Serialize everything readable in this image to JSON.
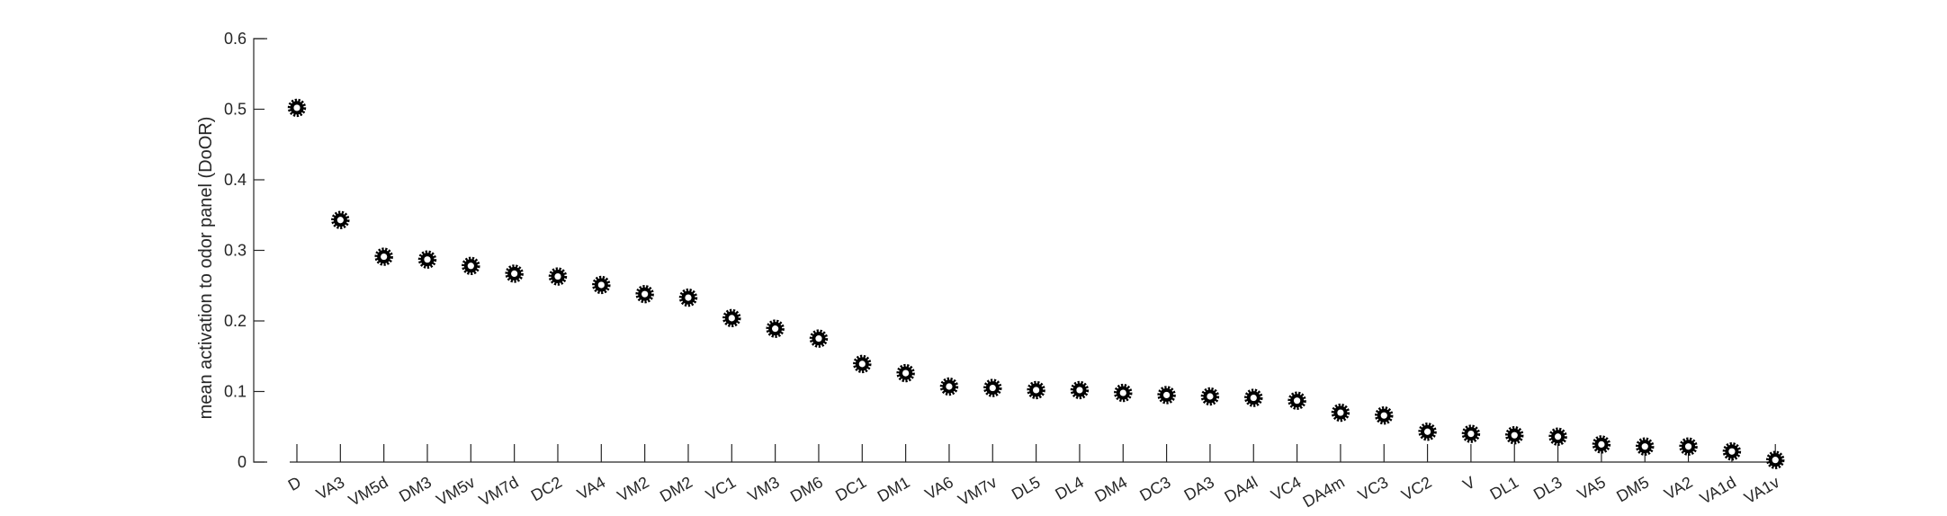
{
  "chart_data": {
    "type": "scatter",
    "categories": [
      "D",
      "VA3",
      "VM5d",
      "DM3",
      "VM5v",
      "VM7d",
      "DC2",
      "VA4",
      "VM2",
      "DM2",
      "VC1",
      "VM3",
      "DM6",
      "DC1",
      "DM1",
      "VA6",
      "VM7v",
      "DL5",
      "DL4",
      "DM4",
      "DC3",
      "DA3",
      "DA4l",
      "VC4",
      "DA4m",
      "VC3",
      "VC2",
      "V",
      "DL1",
      "DL3",
      "VA5",
      "DM5",
      "VA2",
      "VA1d",
      "VA1v"
    ],
    "values": [
      0.502,
      0.343,
      0.291,
      0.287,
      0.278,
      0.267,
      0.263,
      0.251,
      0.238,
      0.233,
      0.204,
      0.189,
      0.175,
      0.139,
      0.126,
      0.107,
      0.105,
      0.102,
      0.102,
      0.098,
      0.095,
      0.093,
      0.091,
      0.087,
      0.07,
      0.066,
      0.043,
      0.04,
      0.038,
      0.036,
      0.025,
      0.022,
      0.022,
      0.015,
      0.003
    ],
    "title": "",
    "xlabel": "",
    "ylabel": "mean activation to odor panel (DoOR)",
    "ylim": [
      0,
      0.6
    ],
    "yticks": [
      "0",
      "0.1",
      "0.2",
      "0.3",
      "0.4",
      "0.5",
      "0.6"
    ],
    "grid": false,
    "marker_color": "#000000",
    "axis_color": "#262626"
  }
}
